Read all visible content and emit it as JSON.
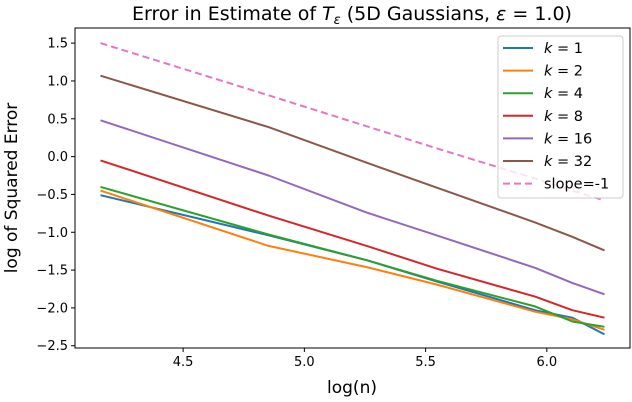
{
  "chart_data": {
    "type": "line",
    "title": "Error in Estimate of T_ε (5D Gaussians, ε = 1.0)",
    "title_parts": {
      "prefix": "Error in Estimate of ",
      "symbol": "T",
      "subscript": "ε",
      "suffix_open": " (5D Gaussians, ",
      "eps": "ε",
      "suffix_close": " = 1.0)"
    },
    "xlabel": "log(n)",
    "ylabel": "log of Squared Error",
    "xlim": [
      4.054,
      6.343
    ],
    "ylim": [
      -2.53,
      1.7
    ],
    "xticks": [
      4.5,
      5.0,
      5.5,
      6.0
    ],
    "xtick_labels": [
      "4.5",
      "5.0",
      "5.5",
      "6.0"
    ],
    "yticks": [
      1.5,
      1.0,
      0.5,
      0.0,
      -0.5,
      -1.0,
      -1.5,
      -2.0,
      -2.5
    ],
    "ytick_labels": [
      "1.5",
      "1.0",
      "0.5",
      "0.0",
      "−0.5",
      "−1.0",
      "−1.5",
      "−2.0",
      "−2.5"
    ],
    "grid": false,
    "legend_position": "top-right",
    "x": [
      4.159,
      4.852,
      5.257,
      5.545,
      5.951,
      6.105,
      6.238
    ],
    "series": [
      {
        "name": "k = 1",
        "color": "#1f77b4",
        "dashed": false,
        "values": [
          -0.51,
          -1.04,
          -1.37,
          -1.65,
          -2.03,
          -2.13,
          -2.35
        ]
      },
      {
        "name": "k = 2",
        "color": "#ff7f0e",
        "dashed": false,
        "values": [
          -0.45,
          -1.18,
          -1.46,
          -1.69,
          -2.05,
          -2.15,
          -2.29
        ]
      },
      {
        "name": "k = 4",
        "color": "#2ca02c",
        "dashed": false,
        "values": [
          -0.4,
          -1.03,
          -1.37,
          -1.64,
          -1.98,
          -2.18,
          -2.25
        ]
      },
      {
        "name": "k = 8",
        "color": "#d62728",
        "dashed": false,
        "values": [
          -0.05,
          -0.78,
          -1.18,
          -1.48,
          -1.85,
          -2.03,
          -2.13
        ]
      },
      {
        "name": "k = 16",
        "color": "#9467bd",
        "dashed": false,
        "values": [
          0.48,
          -0.25,
          -0.74,
          -1.04,
          -1.47,
          -1.67,
          -1.82
        ]
      },
      {
        "name": "k = 32",
        "color": "#8c564b",
        "dashed": false,
        "values": [
          1.07,
          0.39,
          -0.08,
          -0.41,
          -0.87,
          -1.06,
          -1.24
        ]
      },
      {
        "name": "slope=-1",
        "color": "#e377c2",
        "dashed": true,
        "values": [
          1.5,
          0.81,
          0.4,
          0.11,
          -0.29,
          -0.45,
          -0.58
        ]
      }
    ]
  }
}
